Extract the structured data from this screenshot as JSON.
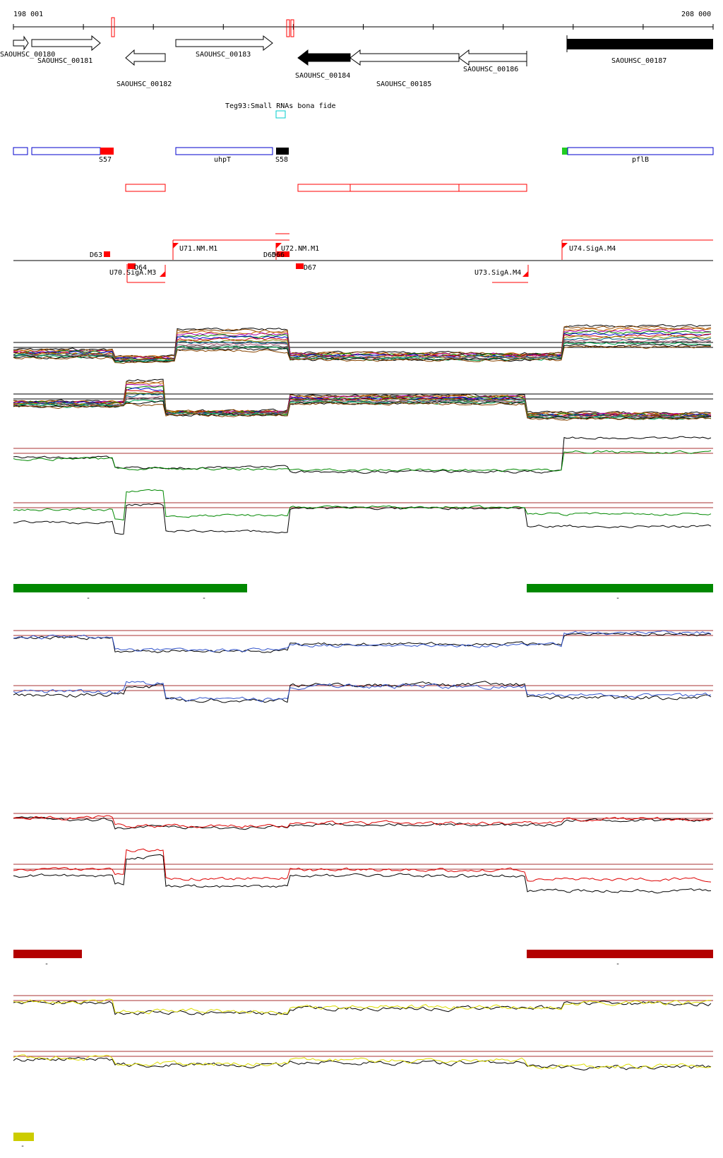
{
  "coordinates": {
    "start": "198 001",
    "end": "208 000"
  },
  "genes": [
    {
      "label": "SAOUHSC_00180",
      "style": "outline"
    },
    {
      "label": "SAOUHSC_00181",
      "style": "outline"
    },
    {
      "label": "SAOUHSC_00182",
      "style": "outline"
    },
    {
      "label": "SAOUHSC_00183",
      "style": "outline"
    },
    {
      "label": "SAOUHSC_00184",
      "style": "filled"
    },
    {
      "label": "SAOUHSC_00185",
      "style": "outline"
    },
    {
      "label": "SAOUHSC_00186",
      "style": "outline"
    },
    {
      "label": "SAOUHSC_00187",
      "style": "filled"
    }
  ],
  "srna": {
    "label": "Teg93:Small RNAs bona fide"
  },
  "segments": {
    "s57": "S57",
    "uhpt": "uhpT",
    "s58": "S58",
    "pflb": "pflB"
  },
  "features": {
    "d63": "D63",
    "d64": "D64",
    "d65": "D65",
    "d66": "D66",
    "d67": "D67",
    "u70": "U70.SigA.M3",
    "u71": "U71.NM.M1",
    "u72": "U72.NM.M1",
    "u73": "U73.SigA.M4",
    "u74": "U74.SigA.M4"
  },
  "bar_marks": {
    "mark": "-"
  },
  "colors": {
    "red": "#ff0000",
    "blue": "#0000cc",
    "green": "#008800",
    "darkred": "#b30000",
    "yellowgreen": "#cccc00",
    "trackblue": "#3355cc",
    "trackred": "#dd0000",
    "trackyellow": "#dddd00",
    "refline": "#aa3333"
  }
}
